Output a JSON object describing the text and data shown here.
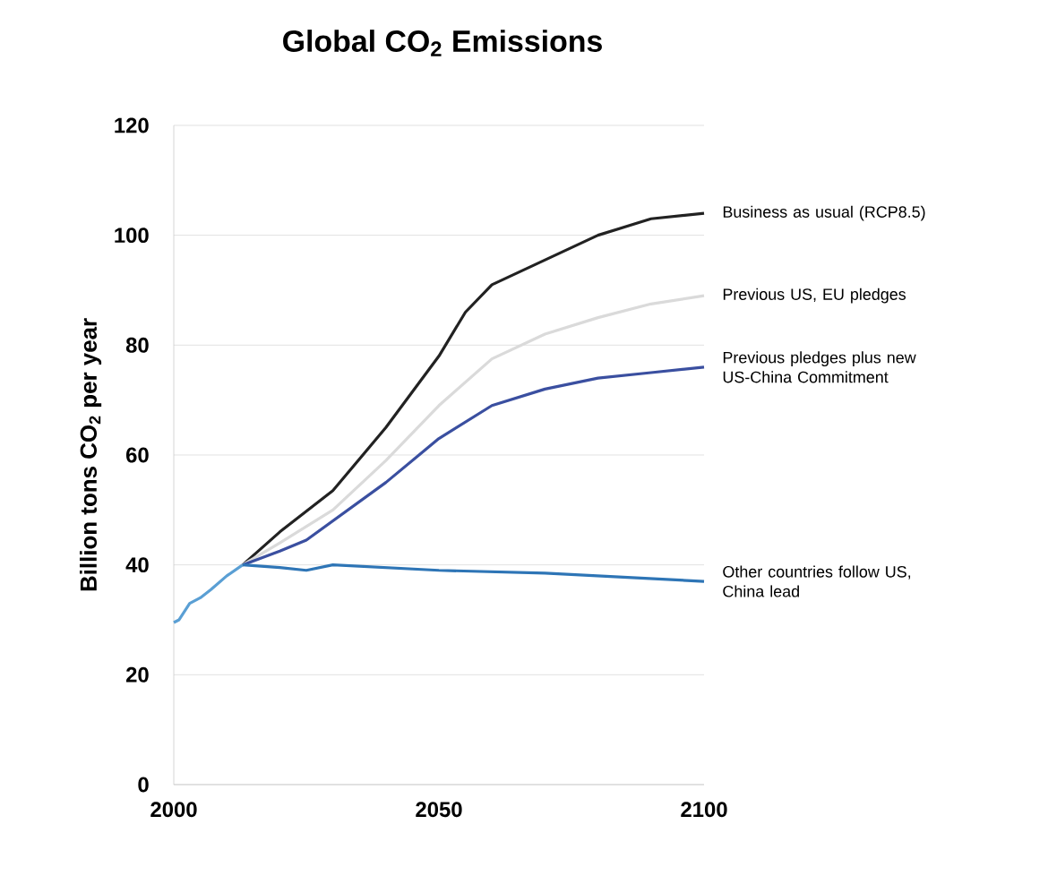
{
  "chart_data": {
    "type": "line",
    "title": "Global CO$_{2}$ Emissions",
    "ylabel": "Billion tons CO$_{2}$ per year",
    "xlim": [
      2000,
      2100
    ],
    "xticks": [
      2000,
      2050,
      2100
    ],
    "ylim": [
      0,
      120
    ],
    "yticks": [
      0,
      20,
      40,
      60,
      80,
      100,
      120
    ],
    "grid": "y",
    "series": [
      {
        "color": "#5a9fd4",
        "x": [
          2000,
          2001,
          2003,
          2005,
          2007,
          2010,
          2013
        ],
        "values": [
          29.5,
          30,
          33,
          34,
          35.5,
          38,
          40
        ]
      },
      {
        "name": "Business as usual (RCP8.5)",
        "color": "#222222",
        "x": [
          2013,
          2020,
          2030,
          2040,
          2050,
          2055,
          2060,
          2070,
          2080,
          2090,
          2100
        ],
        "values": [
          40,
          46,
          53.5,
          65,
          78,
          86,
          91,
          95.5,
          100,
          103,
          104
        ]
      },
      {
        "name": "Previous US, EU pledges",
        "color": "#dadada",
        "x": [
          2013,
          2020,
          2030,
          2040,
          2050,
          2060,
          2070,
          2080,
          2090,
          2100
        ],
        "values": [
          40,
          44,
          50,
          59,
          69,
          77.5,
          82,
          85,
          87.5,
          89
        ]
      },
      {
        "name": "Previous pledges plus new US-China Commitment",
        "color": "#3a4fa0",
        "x": [
          2013,
          2020,
          2025,
          2030,
          2040,
          2050,
          2060,
          2070,
          2080,
          2090,
          2100
        ],
        "values": [
          40,
          42.5,
          44.5,
          48,
          55,
          63,
          69,
          72,
          74,
          75,
          76
        ]
      },
      {
        "name": "Other countries follow US, China lead",
        "color": "#2e75b6",
        "x": [
          2013,
          2020,
          2025,
          2030,
          2050,
          2070,
          2100
        ],
        "values": [
          40,
          39.5,
          39,
          40,
          39,
          38.5,
          37
        ]
      }
    ]
  }
}
